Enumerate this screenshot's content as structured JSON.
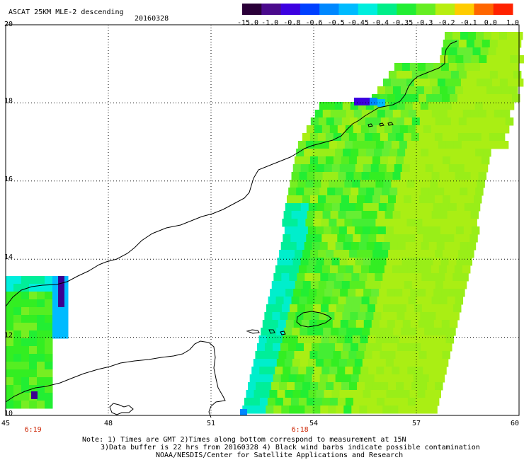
{
  "header": {
    "title": "ASCAT 25KM MLE-2 descending",
    "date": "20160328"
  },
  "colorbar": {
    "labels": [
      "-15.0",
      "-1.0",
      "-0.8",
      "-0.6",
      "-0.5",
      "-0.45",
      "-0.4",
      "-0.35",
      "-0.3",
      "-0.2",
      "-0.1",
      "0.0",
      "1.0"
    ],
    "colors": [
      "#2a0038",
      "#4a0a8c",
      "#3c00e0",
      "#0040ff",
      "#0088ff",
      "#00bbff",
      "#00eedd",
      "#00ee88",
      "#22ee33",
      "#66ee22",
      "#b8ee10",
      "#ffcc00",
      "#ff6600",
      "#ff2200"
    ]
  },
  "map": {
    "lon_range": [
      45,
      60
    ],
    "lat_range": [
      10,
      20
    ],
    "lon_ticks": [
      "45",
      "48",
      "51",
      "54",
      "57",
      "60"
    ],
    "lat_ticks": [
      "10",
      "12",
      "14",
      "16",
      "18",
      "20"
    ],
    "time_labels": [
      {
        "lon": 45.8,
        "text": "6:19"
      },
      {
        "lon": 53.6,
        "text": "6:18"
      }
    ]
  },
  "notes": {
    "line1": "Note: 1) Times are GMT 2)Times along bottom correspond to measurement at 15N",
    "line2": "3)Data buffer is 22 hrs from 20160328 4) Black wind barbs indicate possible contamination",
    "line3": "NOAA/NESDIS/Center for Satellite Applications and Research"
  }
}
